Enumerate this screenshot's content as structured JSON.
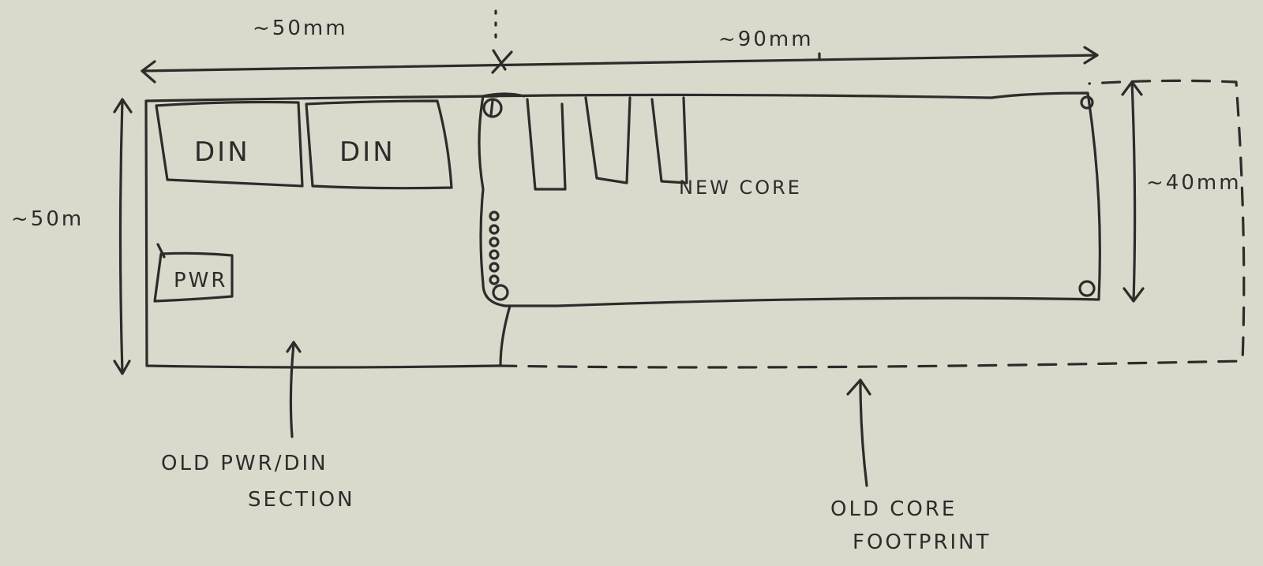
{
  "diagram": {
    "dimensions": {
      "width_top_left": "~50mm",
      "width_top_right": "~90mm",
      "height_left": "~50m",
      "height_right": "~40mm"
    },
    "components": {
      "din_1": "DIN",
      "din_2": "DIN",
      "pwr": "PWR",
      "new_core": "NEW CORE"
    },
    "annotations": {
      "old_pwr_din_line1": "OLD PWR/DIN",
      "old_pwr_din_line2": "SECTION",
      "old_core_line1": "OLD CORE",
      "old_core_line2": "FOOTPRINT"
    },
    "colors": {
      "paper": "#dbd9cc",
      "ink": "#2c2c2a"
    }
  }
}
